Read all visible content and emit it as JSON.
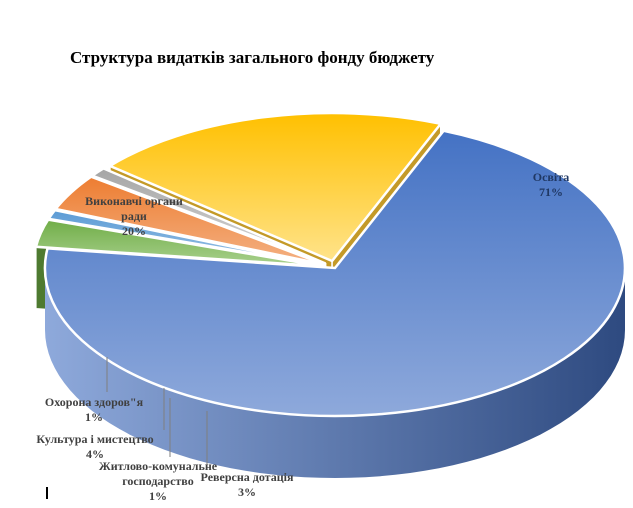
{
  "chart_data": {
    "type": "pie",
    "title": "Структура видатків загального  фонду бюджету",
    "slices": [
      {
        "name": "Освіта",
        "value": 71,
        "label_pct": "71%",
        "color": "#4472C4",
        "color_light": "#8EA9DB",
        "side": "#2E4A80",
        "label_color": "#203864"
      },
      {
        "name": "Реверсна дотація",
        "value": 3,
        "label_pct": "3%",
        "color": "#70AD47",
        "color_light": "#A9D18E",
        "side": "#4E7A30",
        "label_color": "#203864"
      },
      {
        "name": "Житлово-комунальне господарство",
        "value": 1,
        "label_pct": "1%",
        "color": "#5B9BD5",
        "color_light": "#9DC3E6",
        "side": "#3E6F9C",
        "label_color": "#203864"
      },
      {
        "name": "Культура і мистецтво",
        "value": 4,
        "label_pct": "4%",
        "color": "#ED7D31",
        "color_light": "#F4B183",
        "side": "#B05A20",
        "label_color": "#203864"
      },
      {
        "name": "Охорона здоров\"я",
        "value": 1,
        "label_pct": "1%",
        "color": "#A5A5A5",
        "color_light": "#D9D9D9",
        "side": "#777777",
        "label_color": "#203864"
      },
      {
        "name": "Виконавчі органи ради",
        "value": 20,
        "label_pct": "20%",
        "color": "#FFC000",
        "color_light": "#FFE38A",
        "side": "#C49A28",
        "label_color": "#3A3A3A"
      }
    ],
    "labels": [
      {
        "lines": [
          "Освіта"
        ],
        "pct": "71%"
      },
      {
        "lines": [
          "Виконавчі органи",
          "ради"
        ],
        "pct": "20%"
      },
      {
        "lines": [
          "Охорона здоров\"я"
        ],
        "pct": "1%"
      },
      {
        "lines": [
          "Культура і мистецтво"
        ],
        "pct": "4%"
      },
      {
        "lines": [
          "Житлово-комунальне",
          "господарство"
        ],
        "pct": "1%"
      },
      {
        "lines": [
          "Реверсна дотація"
        ],
        "pct": "3%"
      }
    ],
    "legend": "none",
    "exploded": true,
    "perspective": "3d"
  }
}
